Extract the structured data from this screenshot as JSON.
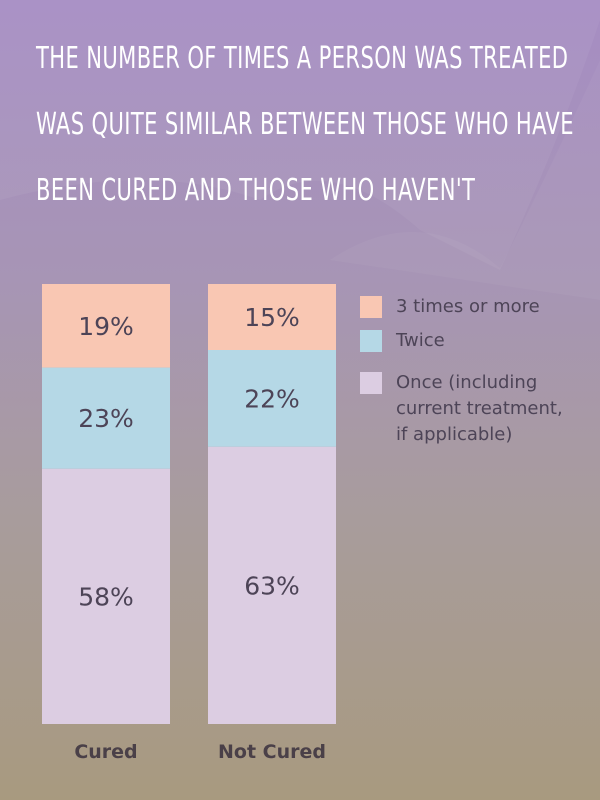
{
  "title": "The number of times a person was treated was quite similar between those who have been cured and those who haven't",
  "colors": {
    "three_plus": "#f9c7b3",
    "twice": "#b5d8e6",
    "once": "#dccde2",
    "text_dark": "#4d4457",
    "label_dark": "#4a4048"
  },
  "legend": {
    "items": [
      {
        "key": "three_plus",
        "label": "3 times or more"
      },
      {
        "key": "twice",
        "label": "Twice"
      },
      {
        "key": "once",
        "label_lines": [
          "Once (including",
          "current treatment,",
          "if applicable)"
        ]
      }
    ]
  },
  "chart_data": {
    "type": "bar",
    "stacked": true,
    "normalized_percent": true,
    "categories": [
      "Cured",
      "Not Cured"
    ],
    "series": [
      {
        "key": "three_plus",
        "name": "3 times or more",
        "values": [
          19,
          15
        ],
        "labels": [
          "19%",
          "15%"
        ]
      },
      {
        "key": "twice",
        "name": "Twice",
        "values": [
          23,
          22
        ],
        "labels": [
          "23%",
          "22%"
        ]
      },
      {
        "key": "once",
        "name": "Once (including current treatment, if applicable)",
        "values": [
          58,
          63
        ],
        "labels": [
          "58%",
          "63%"
        ]
      }
    ],
    "stack_order_top_to_bottom": [
      "three_plus",
      "twice",
      "once"
    ],
    "legend_position": "right"
  }
}
